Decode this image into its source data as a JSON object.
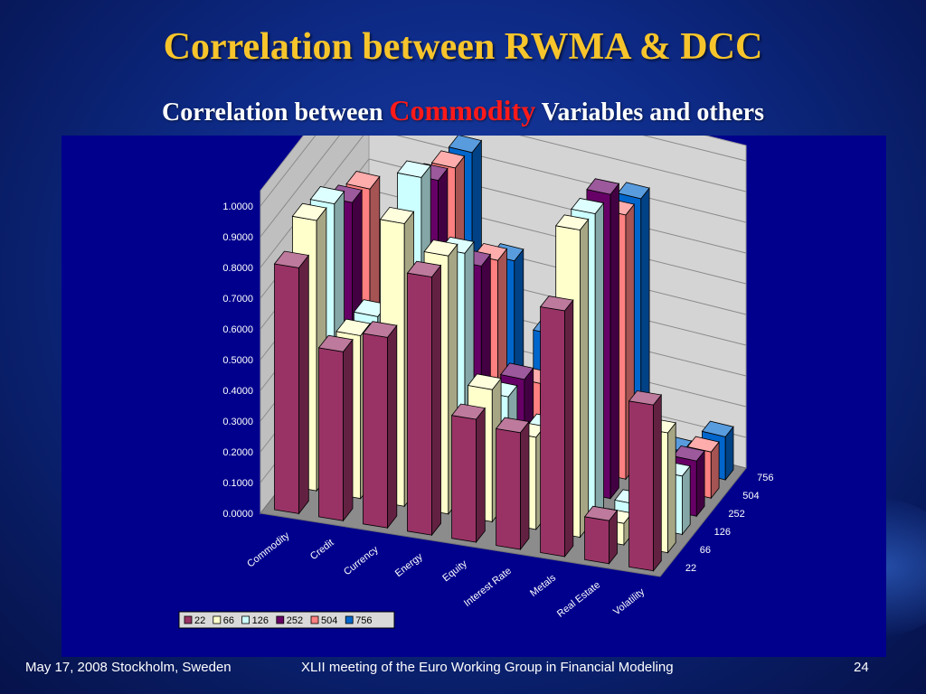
{
  "slide": {
    "title": "Correlation between RWMA & DCC",
    "subtitle_prefix": "Correlation between ",
    "subtitle_highlight": "Commodity",
    "subtitle_suffix": " Variables and others"
  },
  "footer": {
    "date_location": "May 17, 2008 Stockholm, Sweden",
    "meeting": "XLII meeting of the Euro Working Group in Financial Modeling",
    "page_number": "24"
  },
  "chart_data": {
    "type": "bar",
    "variant": "3d-clustered-column",
    "title": "",
    "xlabel": "",
    "ylabel": "",
    "ylim": [
      0,
      1
    ],
    "ytick_labels": [
      "0.0000",
      "0.1000",
      "0.2000",
      "0.3000",
      "0.4000",
      "0.5000",
      "0.6000",
      "0.7000",
      "0.8000",
      "0.9000",
      "1.0000"
    ],
    "categories": [
      "Commodity",
      "Credit",
      "Currency",
      "Energy",
      "Equity",
      "Interest Rate",
      "Metals",
      "Real Estate",
      "Volatility"
    ],
    "depth_labels": [
      "22",
      "66",
      "126",
      "252",
      "504",
      "756"
    ],
    "legend_position": "bottom-left",
    "grid": true,
    "series": [
      {
        "name": "22",
        "color": "#993366",
        "values": [
          0.8,
          0.55,
          0.62,
          0.84,
          0.4,
          0.38,
          0.8,
          0.14,
          0.54
        ]
      },
      {
        "name": "66",
        "color": "#ffffcc",
        "values": [
          0.88,
          0.53,
          0.92,
          0.84,
          0.43,
          0.3,
          1.0,
          0.07,
          0.39
        ]
      },
      {
        "name": "126",
        "color": "#ccffff",
        "values": [
          0.86,
          0.52,
          1.0,
          0.78,
          0.34,
          0.26,
          0.99,
          0.07,
          0.19
        ]
      },
      {
        "name": "252",
        "color": "#660066",
        "values": [
          0.79,
          0.44,
          0.92,
          0.67,
          0.33,
          0.19,
          0.99,
          0.07,
          0.18
        ]
      },
      {
        "name": "504",
        "color": "#ff8080",
        "values": [
          0.76,
          0.41,
          0.89,
          0.62,
          0.25,
          0.1,
          0.86,
          0.08,
          0.15
        ]
      },
      {
        "name": "756",
        "color": "#0066cc",
        "values": [
          0.33,
          0.43,
          0.87,
          0.55,
          0.34,
          0.21,
          0.85,
          0.06,
          0.14
        ]
      }
    ]
  }
}
